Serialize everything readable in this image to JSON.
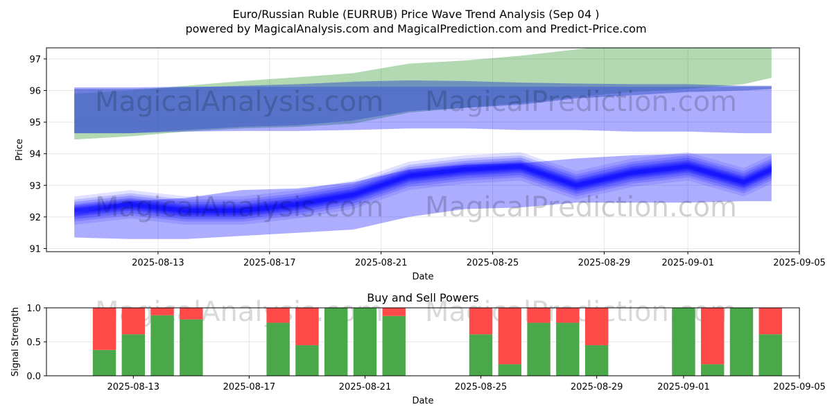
{
  "title_line1": "Euro/Russian Ruble (EURRUB) Price Wave Trend Analysis (Sep 04 )",
  "title_line2": "powered by MagicalAnalysis.com and MagicalPrediction.com and Predict-Price.com",
  "watermarks": [
    "MagicalAnalysis.com",
    "MagicalPrediction.com"
  ],
  "colors": {
    "green_band": "#008000",
    "blue_band": "#0000ff",
    "buy": "#4aa84a",
    "sell": "#ff4a4a",
    "grid": "#e6e6e6"
  },
  "chart_data": [
    {
      "type": "area",
      "title": "",
      "xlabel": "Date",
      "ylabel": "Price",
      "xlim": [
        "2025-08-09",
        "2025-09-05"
      ],
      "ylim": [
        90.9,
        97.35
      ],
      "x_ticks": [
        "2025-08-13",
        "2025-08-17",
        "2025-08-21",
        "2025-08-25",
        "2025-08-29",
        "2025-09-01",
        "2025-09-05"
      ],
      "y_ticks": [
        91,
        92,
        93,
        94,
        95,
        96,
        97
      ],
      "grid": true,
      "dates": [
        "2025-08-10",
        "2025-08-12",
        "2025-08-14",
        "2025-08-16",
        "2025-08-18",
        "2025-08-20",
        "2025-08-22",
        "2025-08-24",
        "2025-08-26",
        "2025-08-28",
        "2025-08-30",
        "2025-09-01",
        "2025-09-03",
        "2025-09-04"
      ],
      "green_band": {
        "upper": [
          95.9,
          96.0,
          96.15,
          96.3,
          96.42,
          96.55,
          96.85,
          96.95,
          97.1,
          97.3,
          97.5,
          97.7,
          97.85,
          97.95
        ],
        "lower": [
          94.45,
          94.55,
          94.7,
          94.8,
          94.85,
          94.95,
          95.3,
          95.45,
          95.6,
          95.8,
          95.95,
          96.05,
          96.2,
          96.4
        ]
      },
      "upper_blue_band": {
        "upper": [
          96.1,
          96.1,
          96.12,
          96.12,
          96.12,
          96.12,
          96.12,
          96.12,
          96.12,
          96.12,
          96.12,
          96.12,
          96.12,
          96.12
        ],
        "lower": [
          94.65,
          94.65,
          94.7,
          94.72,
          94.72,
          94.75,
          94.8,
          94.8,
          94.75,
          94.75,
          94.7,
          94.7,
          94.65,
          94.65
        ]
      },
      "dark_blue_band": {
        "upper": [
          96.05,
          96.05,
          96.1,
          96.15,
          96.2,
          96.28,
          96.32,
          96.3,
          96.25,
          96.22,
          96.2,
          96.2,
          96.15,
          96.15
        ],
        "lower": [
          94.65,
          94.65,
          94.75,
          94.85,
          94.9,
          95.05,
          95.35,
          95.45,
          95.55,
          95.75,
          95.85,
          95.95,
          96.0,
          96.05
        ]
      },
      "lower_blue_band": {
        "upper": [
          92.1,
          92.5,
          92.6,
          92.85,
          92.9,
          93.1,
          93.5,
          93.65,
          93.7,
          93.85,
          93.95,
          94.0,
          94.0,
          94.0
        ],
        "lower": [
          91.35,
          91.3,
          91.3,
          91.4,
          91.5,
          91.6,
          92.0,
          92.25,
          92.3,
          92.45,
          92.45,
          92.45,
          92.5,
          92.5
        ]
      },
      "wave_center": [
        92.2,
        92.4,
        92.2,
        92.2,
        92.4,
        92.7,
        93.3,
        93.5,
        93.6,
        93.0,
        93.4,
        93.6,
        93.1,
        93.5
      ]
    },
    {
      "type": "bar",
      "title": "Buy and Sell Powers",
      "xlabel": "Date",
      "ylabel": "Signal Strength",
      "ylim": [
        0,
        1.0
      ],
      "y_ticks": [
        0.0,
        0.5,
        1.0
      ],
      "x_ticks": [
        "2025-08-13",
        "2025-08-17",
        "2025-08-21",
        "2025-08-25",
        "2025-08-29",
        "2025-09-01",
        "2025-09-05"
      ],
      "grid": true,
      "dates": [
        "2025-08-12",
        "2025-08-13",
        "2025-08-14",
        "2025-08-15",
        "2025-08-18",
        "2025-08-19",
        "2025-08-20",
        "2025-08-21",
        "2025-08-22",
        "2025-08-25",
        "2025-08-26",
        "2025-08-27",
        "2025-08-28",
        "2025-08-29",
        "2025-09-01",
        "2025-09-02",
        "2025-09-03",
        "2025-09-04"
      ],
      "series": [
        {
          "name": "Buy",
          "values": [
            0.38,
            0.61,
            0.89,
            0.83,
            0.78,
            0.45,
            1.0,
            1.0,
            0.88,
            0.61,
            0.17,
            0.78,
            0.78,
            0.45,
            1.0,
            0.17,
            1.0,
            0.61
          ]
        },
        {
          "name": "Sell",
          "values": [
            0.62,
            0.39,
            0.11,
            0.17,
            0.22,
            0.55,
            0.0,
            0.0,
            0.12,
            0.39,
            0.83,
            0.22,
            0.22,
            0.55,
            0.0,
            0.83,
            0.0,
            0.39
          ]
        }
      ]
    }
  ]
}
